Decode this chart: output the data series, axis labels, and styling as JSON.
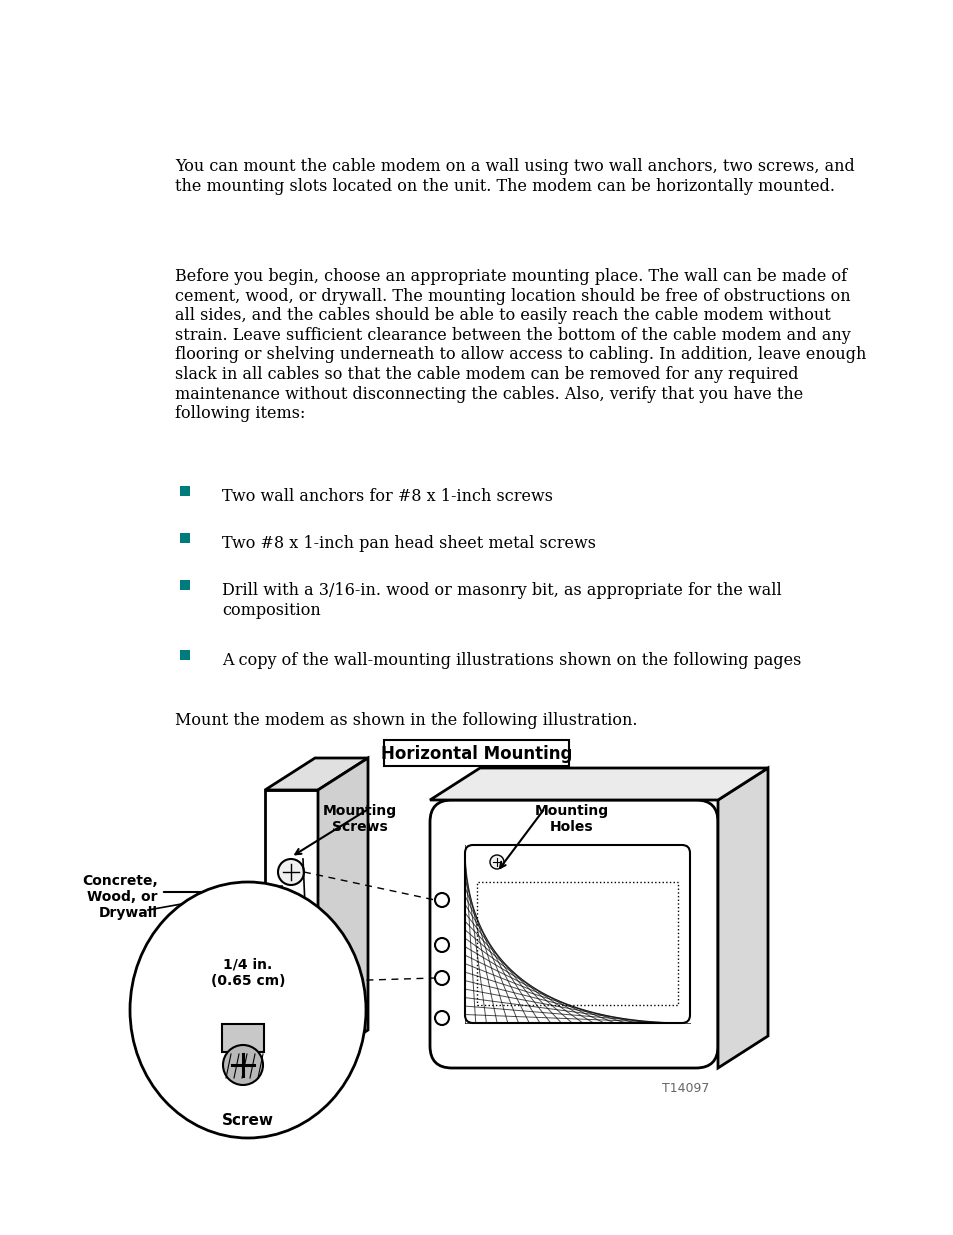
{
  "bg_color": "#ffffff",
  "text_color": "#000000",
  "teal_color": "#007b7b",
  "intro_text": "You can mount the cable modem on a wall using two wall anchors, two screws, and\nthe mounting slots located on the unit. The modem can be horizontally mounted.",
  "body_text": "Before you begin, choose an appropriate mounting place. The wall can be made of\ncement, wood, or drywall. The mounting location should be free of obstructions on\nall sides, and the cables should be able to easily reach the cable modem without\nstrain. Leave sufficient clearance between the bottom of the cable modem and any\nflooring or shelving underneath to allow access to cabling. In addition, leave enough\nslack in all cables so that the cable modem can be removed for any required\nmaintenance without disconnecting the cables. Also, verify that you have the\nfollowing items:",
  "bullet_items": [
    "Two wall anchors for #8 x 1-inch screws",
    "Two #8 x 1-inch pan head sheet metal screws",
    "Drill with a 3/16-in. wood or masonry bit, as appropriate for the wall\ncomposition",
    "A copy of the wall-mounting illustrations shown on the following pages"
  ],
  "caption_text": "Mount the modem as shown in the following illustration.",
  "diagram_title": "Horizontal Mounting",
  "label_mounting_screws": "Mounting\nScrews",
  "label_mounting_holes": "Mounting\nHoles",
  "label_concrete": "Concrete,\nWood, or\nDrywall",
  "label_quarter_inch": "1/4 in.\n(0.65 cm)",
  "label_screw": "Screw",
  "label_t14097": "T14097",
  "font_size_body": 11.5,
  "font_size_diagram_title": 12,
  "font_size_label": 10
}
